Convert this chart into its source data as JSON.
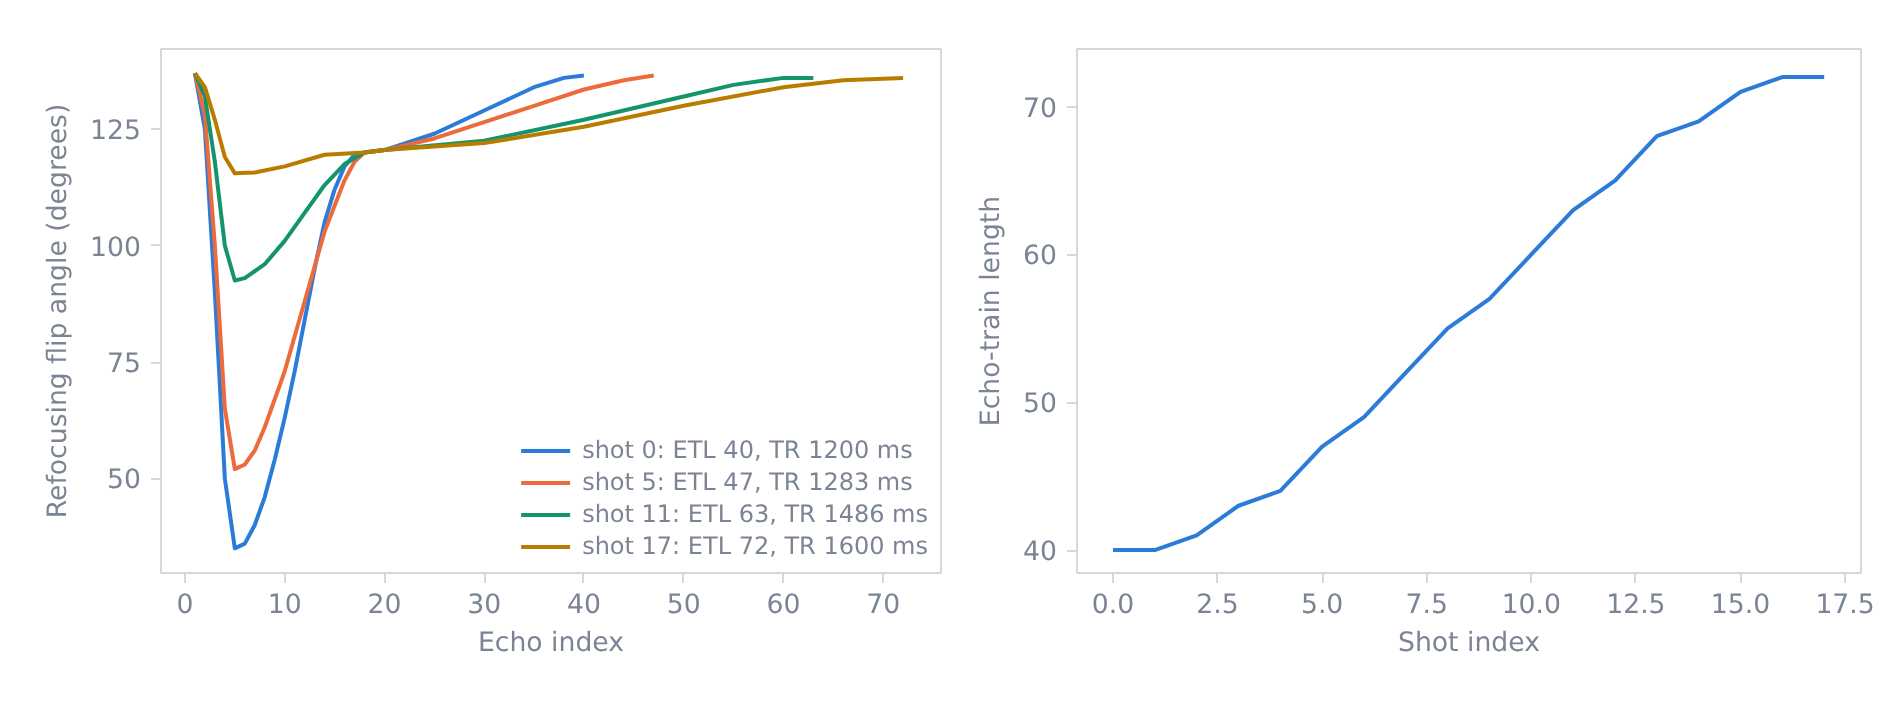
{
  "chart_data": [
    {
      "type": "line",
      "xlabel": "Echo index",
      "ylabel": "Refocusing flip angle (degrees)",
      "xlim": [
        -2.4,
        75.8
      ],
      "ylim": [
        29.7,
        142.2
      ],
      "xticks": [
        0,
        10,
        20,
        30,
        40,
        50,
        60,
        70
      ],
      "yticks": [
        50,
        75,
        100,
        125
      ],
      "grid": false,
      "legend": "bottom right",
      "series": [
        {
          "name": "shot 0: ETL 40, TR 1200 ms",
          "color": "#2b7bd8",
          "x": [
            1,
            2,
            3,
            4,
            5,
            6,
            7,
            8,
            9,
            10,
            11,
            12,
            13,
            14,
            15,
            16,
            17,
            18,
            20,
            25,
            30,
            35,
            38,
            40
          ],
          "values": [
            137,
            125,
            90,
            50,
            35,
            36,
            40,
            46,
            54,
            63,
            73,
            84,
            95,
            105,
            112,
            117,
            119.5,
            120,
            120.5,
            124,
            129,
            134,
            136,
            136.5
          ]
        },
        {
          "name": "shot 5: ETL 47, TR 1283 ms",
          "color": "#ec6a3c",
          "x": [
            1,
            2,
            3,
            4,
            5,
            6,
            7,
            8,
            10,
            12,
            14,
            16,
            17,
            18,
            20,
            25,
            30,
            35,
            40,
            44,
            47
          ],
          "values": [
            137,
            128,
            100,
            65,
            52,
            53,
            56,
            61,
            73,
            88,
            103,
            114,
            118,
            120,
            120.5,
            123,
            126.5,
            130,
            133.5,
            135.5,
            136.5
          ]
        },
        {
          "name": "shot 11: ETL 63, TR 1486 ms",
          "color": "#14946a",
          "x": [
            1,
            2,
            3,
            4,
            5,
            6,
            8,
            10,
            12,
            14,
            16,
            18,
            20,
            30,
            40,
            50,
            55,
            60,
            63
          ],
          "values": [
            137,
            132,
            118,
            100,
            92.5,
            93,
            96,
            101,
            107,
            113,
            117.5,
            120,
            120.5,
            122.5,
            127,
            132,
            134.5,
            136,
            136
          ]
        },
        {
          "name": "shot 17: ETL 72, TR 1600 ms",
          "color": "#b87d00",
          "x": [
            1,
            2,
            3,
            4,
            5,
            7,
            10,
            14,
            18,
            20,
            30,
            40,
            50,
            60,
            66,
            72
          ],
          "values": [
            137,
            134,
            127,
            119,
            115.5,
            115.7,
            117,
            119.5,
            120,
            120.5,
            122,
            125.5,
            130,
            134,
            135.5,
            136
          ]
        }
      ]
    },
    {
      "type": "line",
      "xlabel": "Shot index",
      "ylabel": "Echo-train length",
      "xlim": [
        -0.86,
        17.88
      ],
      "ylim": [
        38.45,
        73.9
      ],
      "xticks": [
        {
          "value": 0,
          "label": "0.0"
        },
        {
          "value": 2.5,
          "label": "2.5"
        },
        {
          "value": 5,
          "label": "5.0"
        },
        {
          "value": 7.5,
          "label": "7.5"
        },
        {
          "value": 10,
          "label": "10.0"
        },
        {
          "value": 12.5,
          "label": "12.5"
        },
        {
          "value": 15,
          "label": "15.0"
        },
        {
          "value": 17.5,
          "label": "17.5"
        }
      ],
      "yticks": [
        40,
        50,
        60,
        70
      ],
      "grid": false,
      "series": [
        {
          "color": "#2b7bd8",
          "x": [
            0,
            1,
            2,
            3,
            4,
            5,
            6,
            7,
            8,
            9,
            10,
            11,
            12,
            13,
            14,
            15,
            16,
            17
          ],
          "values": [
            40,
            40,
            41,
            43,
            44,
            47,
            49,
            52,
            55,
            57,
            60,
            63,
            65,
            68,
            69,
            71,
            72,
            72
          ]
        }
      ]
    }
  ]
}
